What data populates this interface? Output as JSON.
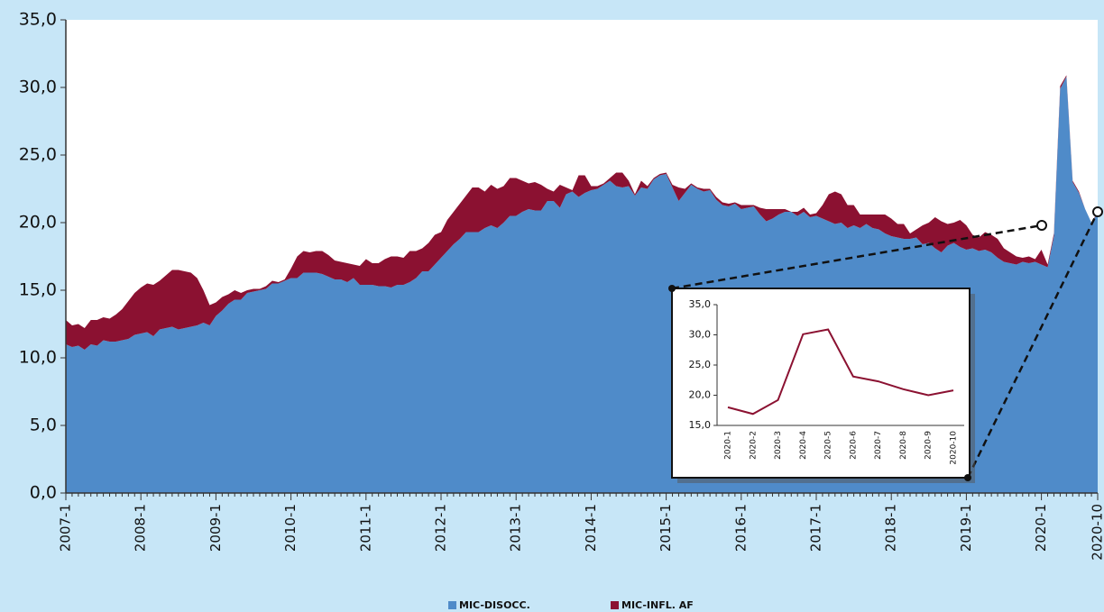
{
  "chart_data": [
    {
      "type": "stacked-area",
      "categories": [
        "2007-1",
        null,
        null,
        null,
        null,
        null,
        null,
        null,
        null,
        null,
        null,
        null,
        "2008-1",
        null,
        null,
        null,
        null,
        null,
        null,
        null,
        null,
        null,
        null,
        null,
        "2009-1",
        null,
        null,
        null,
        null,
        null,
        null,
        null,
        null,
        null,
        null,
        null,
        "2010-1",
        null,
        null,
        null,
        null,
        null,
        null,
        null,
        null,
        null,
        null,
        null,
        "2011-1",
        null,
        null,
        null,
        null,
        null,
        null,
        null,
        null,
        null,
        null,
        null,
        "2012-1",
        null,
        null,
        null,
        null,
        null,
        null,
        null,
        null,
        null,
        null,
        null,
        "2013-1",
        null,
        null,
        null,
        null,
        null,
        null,
        null,
        null,
        null,
        null,
        null,
        "2014-1",
        null,
        null,
        null,
        null,
        null,
        null,
        null,
        null,
        null,
        null,
        null,
        "2015-1",
        null,
        null,
        null,
        null,
        null,
        null,
        null,
        null,
        null,
        null,
        null,
        "2016-1",
        null,
        null,
        null,
        null,
        null,
        null,
        null,
        null,
        null,
        null,
        null,
        "2017-1",
        null,
        null,
        null,
        null,
        null,
        null,
        null,
        null,
        null,
        null,
        null,
        "2018-1",
        null,
        null,
        null,
        null,
        null,
        null,
        null,
        null,
        null,
        null,
        null,
        "2019-1",
        null,
        null,
        null,
        null,
        null,
        null,
        null,
        null,
        null,
        null,
        null,
        "2020-1",
        null,
        null,
        null,
        null,
        null,
        null,
        null,
        null,
        "2020-10"
      ],
      "series": [
        {
          "name": "MIC-DISOCC.",
          "color": "#4f8bc9",
          "values": [
            11.0,
            10.8,
            10.9,
            10.6,
            11.0,
            10.9,
            11.3,
            11.2,
            11.2,
            11.3,
            11.4,
            11.7,
            11.8,
            11.9,
            11.6,
            12.1,
            12.2,
            12.3,
            12.1,
            12.2,
            12.3,
            12.4,
            12.6,
            12.4,
            13.1,
            13.5,
            14.0,
            14.3,
            14.3,
            14.8,
            14.9,
            15.0,
            15.1,
            15.5,
            15.5,
            15.7,
            15.9,
            15.9,
            16.3,
            16.3,
            16.3,
            16.2,
            16.0,
            15.8,
            15.8,
            15.6,
            15.9,
            15.4,
            15.4,
            15.4,
            15.3,
            15.3,
            15.2,
            15.4,
            15.4,
            15.6,
            15.9,
            16.4,
            16.4,
            16.9,
            17.4,
            17.9,
            18.4,
            18.8,
            19.3,
            19.3,
            19.3,
            19.6,
            19.8,
            19.6,
            20.0,
            20.5,
            20.5,
            20.8,
            21.0,
            20.9,
            20.9,
            21.6,
            21.6,
            21.1,
            22.1,
            22.3,
            21.9,
            22.2,
            22.4,
            22.5,
            22.8,
            23.1,
            22.7,
            22.6,
            22.7,
            22.0,
            22.6,
            22.5,
            23.2,
            23.5,
            23.6,
            22.6,
            21.6,
            22.2,
            22.8,
            22.5,
            22.3,
            22.4,
            21.7,
            21.3,
            21.2,
            21.4,
            21.0,
            21.1,
            21.2,
            20.6,
            20.1,
            20.3,
            20.6,
            20.8,
            20.8,
            20.5,
            20.8,
            20.4,
            20.5,
            20.3,
            20.1,
            19.9,
            20.0,
            19.6,
            19.8,
            19.6,
            19.9,
            19.6,
            19.5,
            19.2,
            19.0,
            18.9,
            18.8,
            18.8,
            18.9,
            18.4,
            18.5,
            18.1,
            17.8,
            18.3,
            18.5,
            18.2,
            18.0,
            18.1,
            17.9,
            18.0,
            17.8,
            17.4,
            17.1,
            17.0,
            16.9,
            17.1,
            17.0,
            17.1,
            16.9,
            16.7,
            19.0,
            29.9,
            30.8,
            23.0,
            22.2,
            21.0,
            20.0,
            20.7
          ]
        },
        {
          "name": "MIC-INFL. AF",
          "color": "#8b1131",
          "values": [
            1.8,
            1.6,
            1.6,
            1.6,
            1.8,
            1.9,
            1.7,
            1.7,
            2.0,
            2.3,
            2.8,
            3.1,
            3.4,
            3.6,
            3.8,
            3.6,
            3.9,
            4.2,
            4.4,
            4.2,
            4.0,
            3.5,
            2.4,
            1.5,
            1.0,
            1.0,
            0.7,
            0.7,
            0.5,
            0.2,
            0.2,
            0.1,
            0.2,
            0.2,
            0.1,
            0.1,
            0.7,
            1.6,
            1.6,
            1.5,
            1.6,
            1.7,
            1.6,
            1.4,
            1.3,
            1.4,
            1.0,
            1.4,
            1.9,
            1.6,
            1.7,
            2.0,
            2.3,
            2.1,
            2.0,
            2.3,
            2.0,
            1.7,
            2.1,
            2.2,
            1.9,
            2.3,
            2.4,
            2.6,
            2.7,
            3.3,
            3.3,
            2.7,
            3.0,
            2.9,
            2.7,
            2.8,
            2.8,
            2.3,
            1.9,
            2.1,
            1.9,
            0.9,
            0.7,
            1.7,
            0.5,
            0.1,
            1.6,
            1.3,
            0.3,
            0.2,
            0.1,
            0.2,
            1.0,
            1.1,
            0.4,
            0.1,
            0.5,
            0.2,
            0.1,
            0.1,
            0.1,
            0.2,
            1.0,
            0.3,
            0.1,
            0.1,
            0.2,
            0.1,
            0.2,
            0.2,
            0.2,
            0.1,
            0.3,
            0.2,
            0.1,
            0.5,
            0.9,
            0.7,
            0.4,
            0.2,
            0.0,
            0.3,
            0.3,
            0.2,
            0.2,
            1.0,
            2.0,
            2.4,
            2.1,
            1.7,
            1.5,
            1.0,
            0.7,
            1.0,
            1.1,
            1.4,
            1.3,
            1.0,
            1.1,
            0.4,
            0.6,
            1.4,
            1.5,
            2.3,
            2.3,
            1.6,
            1.5,
            2.0,
            1.8,
            1.0,
            1.0,
            1.3,
            1.3,
            1.4,
            1.0,
            0.8,
            0.6,
            0.3,
            0.5,
            0.2,
            1.1,
            0.2,
            0.2,
            0.2,
            0.1,
            0.1,
            0.1,
            0.0,
            0.0,
            0.1
          ]
        }
      ],
      "ylim": [
        0,
        35
      ],
      "yticks": [
        {
          "value": 0,
          "label": "0,0"
        },
        {
          "value": 5,
          "label": "5,0"
        },
        {
          "value": 10,
          "label": "10,0"
        },
        {
          "value": 15,
          "label": "15,0"
        },
        {
          "value": 20,
          "label": "20,0"
        },
        {
          "value": 25,
          "label": "25,0"
        },
        {
          "value": 30,
          "label": "30,0"
        },
        {
          "value": 35,
          "label": "35,0"
        }
      ],
      "legend": "bottom"
    },
    {
      "type": "line",
      "categories": [
        "2020-1",
        "2020-2",
        "2020-3",
        "2020-4",
        "2020-5",
        "2020-6",
        "2020-7",
        "2020-8",
        "2020-9",
        "2020-10"
      ],
      "values": [
        18.0,
        16.9,
        19.2,
        30.1,
        30.9,
        23.1,
        22.3,
        21.0,
        20.0,
        20.8
      ],
      "color": "#8b1131",
      "ylim": [
        15,
        35
      ],
      "yticks": [
        {
          "value": 15,
          "label": "15,0"
        },
        {
          "value": 20,
          "label": "20,0"
        },
        {
          "value": 25,
          "label": "25,0"
        },
        {
          "value": 30,
          "label": "30,0"
        },
        {
          "value": 35,
          "label": "35,0"
        }
      ]
    }
  ]
}
